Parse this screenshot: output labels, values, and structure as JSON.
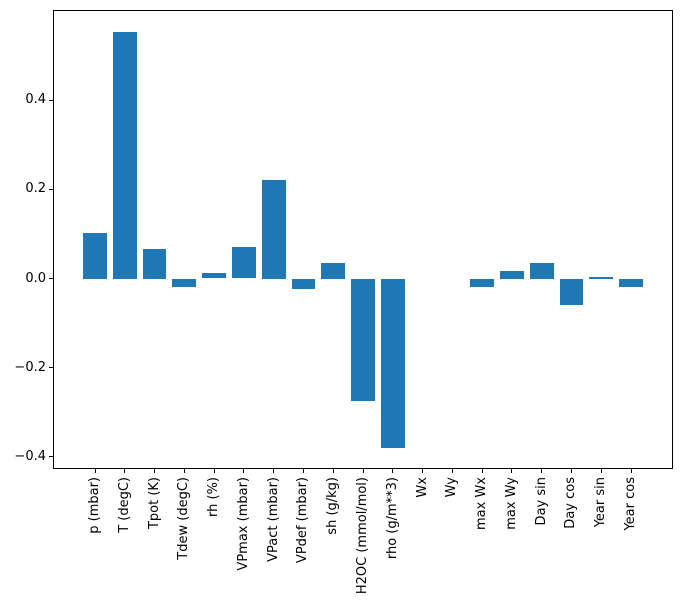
{
  "figure": {
    "background": "#ffffff"
  },
  "chart_data": {
    "type": "bar",
    "title": "",
    "xlabel": "",
    "ylabel": "",
    "categories": [
      "p (mbar)",
      "T (degC)",
      "Tpot (K)",
      "Tdew (degC)",
      "rh (%)",
      "VPmax (mbar)",
      "VPact (mbar)",
      "VPdef (mbar)",
      "sh (g/kg)",
      "H2OC (mmol/mol)",
      "rho (g/m**3)",
      "Wx",
      "Wy",
      "max Wx",
      "max Wy",
      "Day sin",
      "Day cos",
      "Year sin",
      "Year cos"
    ],
    "values": [
      0.102,
      0.553,
      0.066,
      -0.019,
      0.013,
      0.071,
      0.222,
      -0.024,
      0.035,
      -0.275,
      -0.381,
      0.0,
      0.0,
      -0.019,
      0.017,
      0.035,
      -0.06,
      0.003,
      -0.019
    ],
    "ylim": [
      -0.425,
      0.6
    ],
    "yticks": {
      "values": [
        0.4,
        0.2,
        0.0,
        -0.2,
        -0.4
      ],
      "labels": [
        "0.4",
        "0.2",
        "0.0",
        "−0.2",
        "−0.4"
      ]
    },
    "x_tick_label_rotation": 90,
    "grid": false,
    "legend": null,
    "bar_color": "#1f77b4",
    "axis_color": "#000000",
    "background": "#ffffff"
  }
}
